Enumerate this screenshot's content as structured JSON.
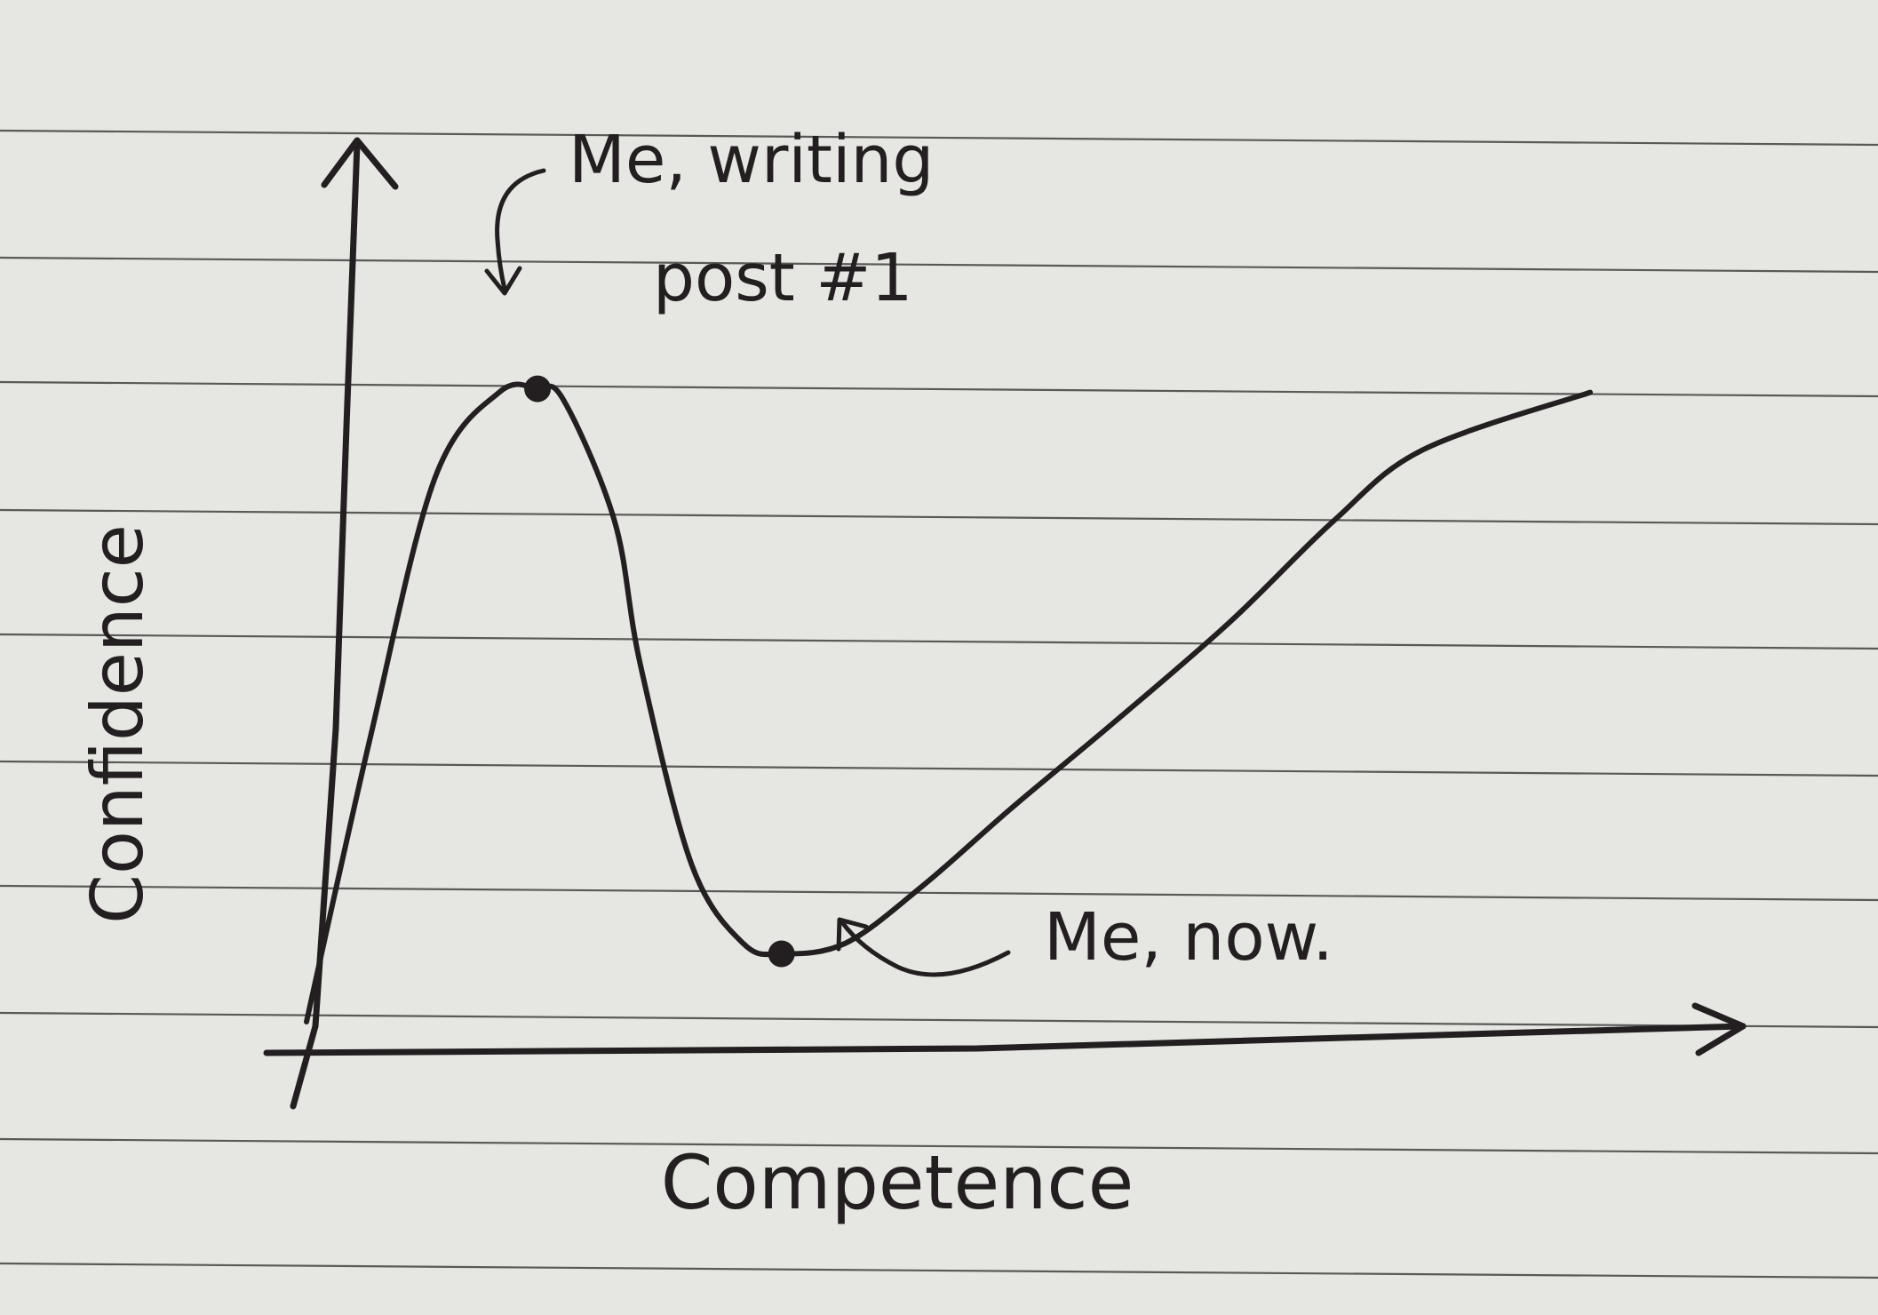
{
  "chart_data": {
    "type": "line",
    "title": "",
    "xlabel": "Competence",
    "ylabel": "Confidence",
    "grid": false,
    "x_ticks": [],
    "y_ticks": [],
    "xlim": [
      0,
      100
    ],
    "ylim": [
      0,
      100
    ],
    "series": [
      {
        "x": [
          0,
          5,
          10,
          15,
          18,
          20,
          24,
          26,
          30,
          34,
          37,
          42,
          48,
          55,
          63,
          72,
          80,
          87,
          100
        ],
        "y": [
          0,
          40,
          76,
          88,
          88.5,
          87,
          70,
          50,
          22,
          11,
          9.5,
          11,
          19,
          30,
          42,
          56,
          70,
          80,
          88
        ]
      }
    ],
    "annotations": [
      {
        "text": "Me, writing post #1",
        "x": 18,
        "y": 88.5
      },
      {
        "text": "Me, now.",
        "x": 37,
        "y": 9.5
      }
    ],
    "ink_color": "#231f20",
    "paper_color": "#e6e6e2",
    "rule_color": "#2b2b2b"
  }
}
